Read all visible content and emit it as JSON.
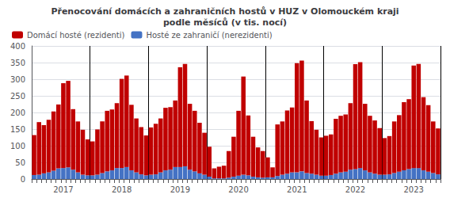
{
  "chart_data": {
    "type": "bar",
    "title": "Přenocování domácích a zahraničních hostů v HUZ v Olomouckém kraji\npodle měsíců (v tis. nocí)",
    "categories": [
      null,
      null,
      null,
      null,
      null,
      null,
      "2017",
      null,
      null,
      null,
      null,
      null,
      null,
      null,
      null,
      null,
      null,
      null,
      "2018",
      null,
      null,
      null,
      null,
      null,
      null,
      null,
      null,
      null,
      null,
      null,
      "2019",
      null,
      null,
      null,
      null,
      null,
      null,
      null,
      null,
      null,
      null,
      null,
      "2020",
      null,
      null,
      null,
      null,
      null,
      null,
      null,
      null,
      null,
      null,
      null,
      "2021",
      null,
      null,
      null,
      null,
      null,
      null,
      null,
      null,
      null,
      null,
      null,
      "2022",
      null,
      null,
      null,
      null,
      null,
      null,
      null,
      null,
      null,
      null,
      null,
      "2023",
      null,
      null,
      null,
      null,
      null
    ],
    "stacked": true,
    "series": [
      {
        "name": "Hosté ze zahraničí (nerezidenti)",
        "color": "#4472c4",
        "values": [
          12,
          13,
          17,
          20,
          25,
          32,
          33,
          35,
          28,
          20,
          13,
          11,
          11,
          13,
          18,
          23,
          26,
          33,
          33,
          36,
          26,
          20,
          14,
          11,
          13,
          14,
          20,
          26,
          28,
          36,
          36,
          38,
          28,
          23,
          17,
          13,
          7,
          2,
          2,
          2,
          4,
          7,
          10,
          13,
          11,
          7,
          5,
          4,
          5,
          5,
          9,
          13,
          16,
          20,
          20,
          23,
          18,
          16,
          13,
          10,
          10,
          12,
          16,
          20,
          22,
          28,
          30,
          33,
          26,
          20,
          16,
          13,
          13,
          14,
          18,
          22,
          26,
          30,
          33,
          33,
          26,
          22,
          18,
          14
        ]
      },
      {
        "name": "Domácí hosté (rezidenti)",
        "color": "#c00000",
        "values": [
          120,
          158,
          145,
          158,
          178,
          192,
          255,
          260,
          182,
          153,
          135,
          108,
          102,
          136,
          155,
          182,
          183,
          195,
          268,
          275,
          197,
          162,
          142,
          120,
          142,
          152,
          162,
          188,
          188,
          200,
          300,
          308,
          198,
          182,
          152,
          126,
          90,
          30,
          35,
          38,
          80,
          120,
          195,
          295,
          180,
          120,
          90,
          80,
          60,
          30,
          155,
          160,
          190,
          195,
          328,
          333,
          218,
          158,
          135,
          115,
          120,
          122,
          165,
          170,
          172,
          200,
          315,
          318,
          200,
          170,
          160,
          140,
          110,
          115,
          155,
          170,
          205,
          210,
          308,
          313,
          220,
          200,
          155,
          138
        ]
      }
    ],
    "ylim": [
      0,
      400
    ],
    "yticks": [
      0,
      50,
      100,
      150,
      200,
      250,
      300,
      350,
      400
    ],
    "grid": true,
    "legend": "upper left"
  }
}
